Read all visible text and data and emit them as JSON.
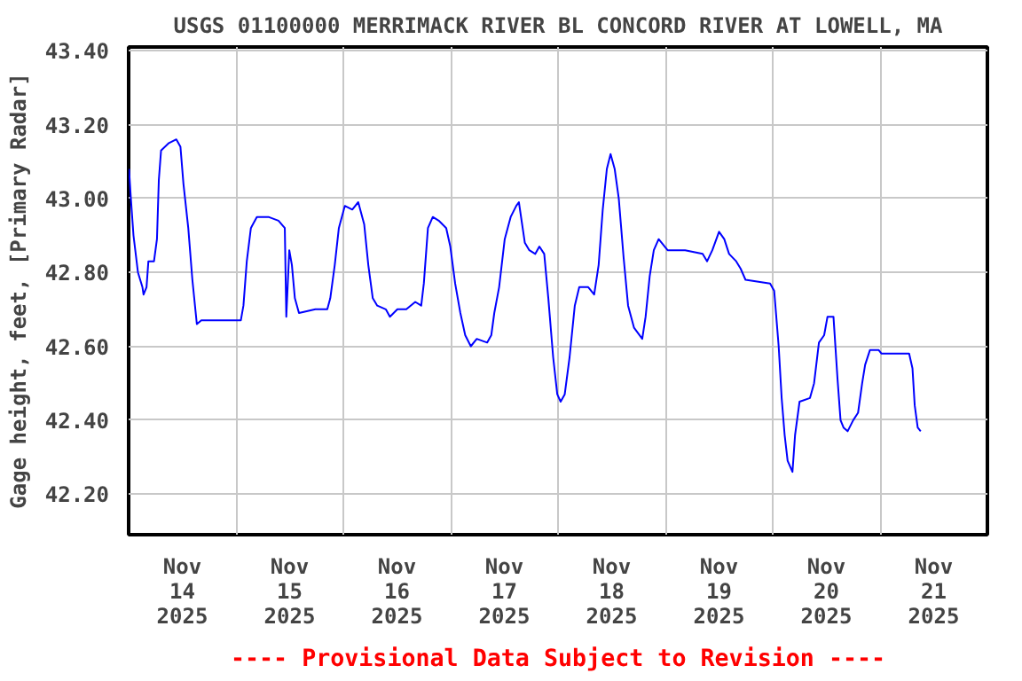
{
  "chart_data": {
    "type": "line",
    "title": "USGS 01100000 MERRIMACK RIVER BL CONCORD RIVER AT LOWELL, MA",
    "ylabel": "Gage height, feet, [Primary Radar]",
    "annotations": [
      "---- Provisional Data Subject to Revision ----"
    ],
    "xlim": [
      "2025-11-14T00:00",
      "2025-11-22T00:00"
    ],
    "xticks": [
      {
        "value": "2025-11-14T00:00",
        "label": null
      },
      {
        "value": "2025-11-14T12:00",
        "label": "Nov\n14\n2025"
      },
      {
        "value": "2025-11-15T00:00",
        "label": null
      },
      {
        "value": "2025-11-15T12:00",
        "label": "Nov\n15\n2025"
      },
      {
        "value": "2025-11-16T00:00",
        "label": null
      },
      {
        "value": "2025-11-16T12:00",
        "label": "Nov\n16\n2025"
      },
      {
        "value": "2025-11-17T00:00",
        "label": null
      },
      {
        "value": "2025-11-17T12:00",
        "label": "Nov\n17\n2025"
      },
      {
        "value": "2025-11-18T00:00",
        "label": null
      },
      {
        "value": "2025-11-18T12:00",
        "label": "Nov\n18\n2025"
      },
      {
        "value": "2025-11-19T00:00",
        "label": null
      },
      {
        "value": "2025-11-19T12:00",
        "label": "Nov\n19\n2025"
      },
      {
        "value": "2025-11-20T00:00",
        "label": null
      },
      {
        "value": "2025-11-20T12:00",
        "label": "Nov\n20\n2025"
      },
      {
        "value": "2025-11-21T00:00",
        "label": null
      },
      {
        "value": "2025-11-21T12:00",
        "label": "Nov\n21\n2025"
      },
      {
        "value": "2025-11-22T00:00",
        "label": null
      }
    ],
    "ylim": [
      42.09,
      43.41
    ],
    "yticks": [
      {
        "value": 42.2,
        "label": "42.20"
      },
      {
        "value": 42.4,
        "label": "42.40"
      },
      {
        "value": 42.6,
        "label": "42.60"
      },
      {
        "value": 42.8,
        "label": "42.80"
      },
      {
        "value": 43.0,
        "label": "43.00"
      },
      {
        "value": 43.2,
        "label": "43.20"
      },
      {
        "value": 43.4,
        "label": "43.40"
      }
    ],
    "grid": true,
    "marker": "none",
    "line_style": "solid",
    "series": [
      {
        "color": "#0000ff",
        "x": [
          "2025-11-14T00:05",
          "2025-11-14T00:30",
          "2025-11-14T01:05",
          "2025-11-14T02:05",
          "2025-11-14T03:05",
          "2025-11-14T03:20",
          "2025-11-14T04:00",
          "2025-11-14T04:25",
          "2025-11-14T05:40",
          "2025-11-14T06:20",
          "2025-11-14T06:45",
          "2025-11-14T07:15",
          "2025-11-14T09:00",
          "2025-11-14T10:40",
          "2025-11-14T11:35",
          "2025-11-14T12:15",
          "2025-11-14T13:20",
          "2025-11-14T14:15",
          "2025-11-14T15:15",
          "2025-11-14T16:15",
          "2025-11-14T20:45",
          "2025-11-14T21:25",
          "2025-11-15T01:05",
          "2025-11-15T01:40",
          "2025-11-15T02:25",
          "2025-11-15T03:20",
          "2025-11-15T04:40",
          "2025-11-15T07:15",
          "2025-11-15T09:30",
          "2025-11-15T10:55",
          "2025-11-15T11:15",
          "2025-11-15T11:55",
          "2025-11-15T12:30",
          "2025-11-15T13:10",
          "2025-11-15T14:05",
          "2025-11-15T17:45",
          "2025-11-15T20:25",
          "2025-11-15T21:05",
          "2025-11-15T22:05",
          "2025-11-15T23:00",
          "2025-11-16T00:20",
          "2025-11-16T02:00",
          "2025-11-16T03:20",
          "2025-11-16T04:40",
          "2025-11-16T05:35",
          "2025-11-16T06:35",
          "2025-11-16T07:35",
          "2025-11-16T09:30",
          "2025-11-16T10:25",
          "2025-11-16T12:05",
          "2025-11-16T14:05",
          "2025-11-16T16:05",
          "2025-11-16T17:25",
          "2025-11-16T18:00",
          "2025-11-16T18:55",
          "2025-11-16T20:00",
          "2025-11-16T21:20",
          "2025-11-16T22:10",
          "2025-11-16T23:00",
          "2025-11-16T23:55",
          "2025-11-17T01:00",
          "2025-11-17T02:10",
          "2025-11-17T03:15",
          "2025-11-17T04:30",
          "2025-11-17T05:50",
          "2025-11-17T08:10",
          "2025-11-17T09:05",
          "2025-11-17T09:45",
          "2025-11-17T10:50",
          "2025-11-17T12:05",
          "2025-11-17T13:25",
          "2025-11-17T14:40",
          "2025-11-17T15:15",
          "2025-11-17T16:35",
          "2025-11-17T17:35",
          "2025-11-17T18:55",
          "2025-11-17T19:50",
          "2025-11-17T20:55",
          "2025-11-17T21:50",
          "2025-11-17T22:55",
          "2025-11-17T23:50",
          "2025-11-18T00:35",
          "2025-11-18T01:30",
          "2025-11-18T02:35",
          "2025-11-18T03:45",
          "2025-11-18T04:45",
          "2025-11-18T06:45",
          "2025-11-18T08:05",
          "2025-11-18T09:05",
          "2025-11-18T10:00",
          "2025-11-18T10:55",
          "2025-11-18T11:45",
          "2025-11-18T12:40",
          "2025-11-18T13:35",
          "2025-11-18T14:40",
          "2025-11-18T15:40",
          "2025-11-18T17:00",
          "2025-11-18T18:50",
          "2025-11-18T19:35",
          "2025-11-18T20:30",
          "2025-11-18T21:25",
          "2025-11-18T22:30",
          "2025-11-19T00:30",
          "2025-11-19T04:25",
          "2025-11-19T08:20",
          "2025-11-19T09:20",
          "2025-11-19T10:30",
          "2025-11-19T12:00",
          "2025-11-19T13:10",
          "2025-11-19T14:15",
          "2025-11-19T15:50",
          "2025-11-19T16:50",
          "2025-11-19T17:55",
          "2025-11-19T23:25",
          "2025-11-20T00:20",
          "2025-11-20T01:20",
          "2025-11-20T02:00",
          "2025-11-20T02:40",
          "2025-11-20T03:20",
          "2025-11-20T04:25",
          "2025-11-20T05:00",
          "2025-11-20T06:00",
          "2025-11-20T08:20",
          "2025-11-20T09:15",
          "2025-11-20T10:20",
          "2025-11-20T11:30",
          "2025-11-20T12:15",
          "2025-11-20T13:35",
          "2025-11-20T14:30",
          "2025-11-20T15:10",
          "2025-11-20T15:50",
          "2025-11-20T16:45",
          "2025-11-20T18:00",
          "2025-11-20T19:05",
          "2025-11-20T20:00",
          "2025-11-20T20:40",
          "2025-11-20T21:45",
          "2025-11-20T23:40",
          "2025-11-21T00:20",
          "2025-11-21T06:30",
          "2025-11-21T07:15",
          "2025-11-21T07:45",
          "2025-11-21T08:25",
          "2025-11-21T09:05"
        ],
        "values": [
          43.08,
          43.0,
          42.9,
          42.8,
          42.76,
          42.74,
          42.76,
          42.83,
          42.83,
          42.89,
          43.05,
          43.13,
          43.15,
          43.16,
          43.14,
          43.04,
          42.92,
          42.78,
          42.66,
          42.67,
          42.67,
          42.67,
          42.67,
          42.71,
          42.83,
          42.92,
          42.95,
          42.95,
          42.94,
          42.92,
          42.68,
          42.86,
          42.82,
          42.73,
          42.69,
          42.7,
          42.7,
          42.73,
          42.82,
          42.92,
          42.98,
          42.97,
          42.99,
          42.93,
          42.82,
          42.73,
          42.71,
          42.7,
          42.68,
          42.7,
          42.7,
          42.72,
          42.71,
          42.77,
          42.92,
          42.95,
          42.94,
          42.93,
          42.92,
          42.87,
          42.77,
          42.69,
          42.63,
          42.6,
          42.62,
          42.61,
          42.63,
          42.69,
          42.76,
          42.89,
          42.95,
          42.98,
          42.99,
          42.88,
          42.86,
          42.85,
          42.87,
          42.85,
          42.73,
          42.57,
          42.47,
          42.45,
          42.47,
          42.57,
          42.71,
          42.76,
          42.76,
          42.74,
          42.82,
          42.97,
          43.08,
          43.12,
          43.08,
          43.0,
          42.84,
          42.71,
          42.65,
          42.62,
          42.68,
          42.79,
          42.86,
          42.89,
          42.86,
          42.86,
          42.85,
          42.83,
          42.86,
          42.91,
          42.89,
          42.85,
          42.83,
          42.81,
          42.78,
          42.77,
          42.75,
          42.6,
          42.46,
          42.36,
          42.29,
          42.26,
          42.36,
          42.45,
          42.46,
          42.5,
          42.61,
          42.63,
          42.68,
          42.68,
          42.51,
          42.4,
          42.38,
          42.37,
          42.4,
          42.42,
          42.5,
          42.55,
          42.59,
          42.59,
          42.58,
          42.58,
          42.54,
          42.44,
          42.38,
          42.37
        ]
      }
    ]
  }
}
